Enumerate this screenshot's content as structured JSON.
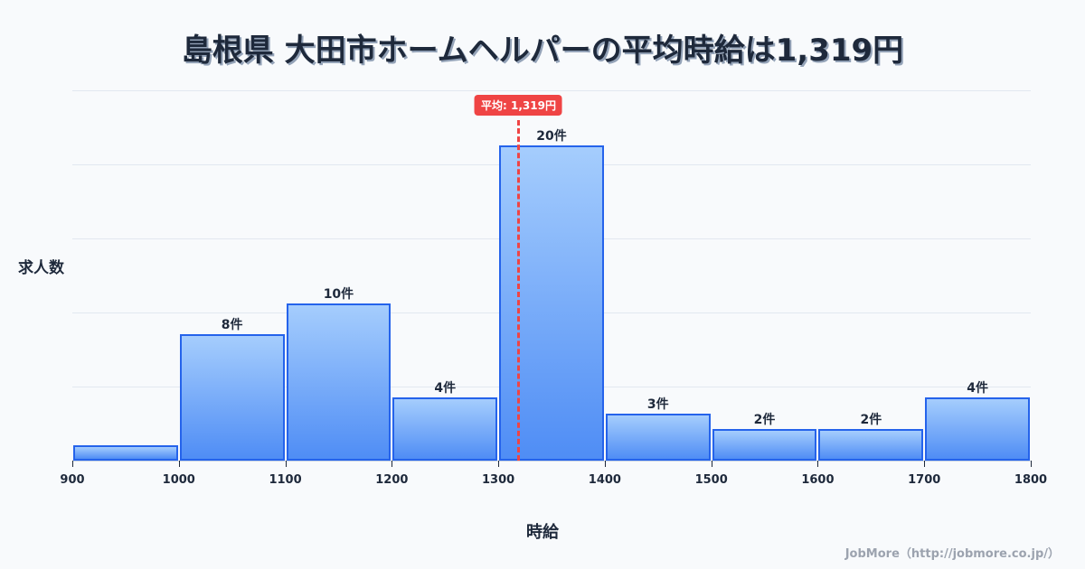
{
  "title": "島根県 大田市ホームヘルパーの平均時給は1,319円",
  "mean_badge": "平均: 1,319円",
  "ylabel": "求人数",
  "xlabel": "時給",
  "credit": "JobMore（http://jobmore.co.jp/）",
  "colors": {
    "bar_border": "#2563eb",
    "bar_top": "#a5cdfd",
    "bar_bottom": "#4f8df5",
    "mean": "#ef4444",
    "text": "#1e293b",
    "grid": "#e2e8f0",
    "background": "#f8fafc"
  },
  "chart_data": {
    "type": "bar",
    "title": "島根県 大田市ホームヘルパーの平均時給は1,319円",
    "xlabel": "時給",
    "ylabel": "求人数",
    "bins": [
      [
        900,
        1000
      ],
      [
        1000,
        1100
      ],
      [
        1100,
        1200
      ],
      [
        1200,
        1300
      ],
      [
        1300,
        1400
      ],
      [
        1400,
        1500
      ],
      [
        1500,
        1600
      ],
      [
        1600,
        1700
      ],
      [
        1700,
        1800
      ]
    ],
    "categories": [
      "900-1000",
      "1000-1100",
      "1100-1200",
      "1200-1300",
      "1300-1400",
      "1400-1500",
      "1500-1600",
      "1600-1700",
      "1700-1800"
    ],
    "values": [
      1,
      8,
      10,
      4,
      20,
      3,
      2,
      2,
      4
    ],
    "value_labels": [
      "",
      "8件",
      "10件",
      "4件",
      "20件",
      "3件",
      "2件",
      "2件",
      "4件"
    ],
    "x_ticks": [
      "900",
      "1000",
      "1100",
      "1200",
      "1300",
      "1400",
      "1500",
      "1600",
      "1700",
      "1800"
    ],
    "xlim": [
      900,
      1800
    ],
    "ylim": [
      0,
      23.5
    ],
    "grid": true,
    "mean": 1319,
    "mean_label": "平均: 1,319円",
    "legend": null
  }
}
